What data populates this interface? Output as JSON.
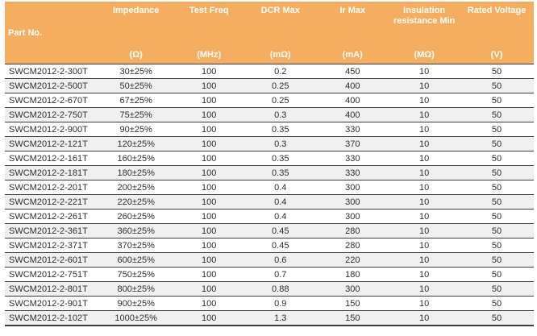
{
  "colors": {
    "header_bg": "#F5AE60",
    "header_text": "#FFFFFF",
    "row_alt_bg": "#F0F0F0",
    "row_line": "#3C3C3C",
    "body_text": "#2E2E2E"
  },
  "table": {
    "columns": [
      {
        "label": "Part No.",
        "unit": ""
      },
      {
        "label": "Impedance",
        "unit": "(Ω)"
      },
      {
        "label": "Test Freq",
        "unit": "(MHz)"
      },
      {
        "label": "DCR Max",
        "unit": "(mΩ)"
      },
      {
        "label": "Ir Max",
        "unit": "(mA)"
      },
      {
        "label": "Insulation resistance Min",
        "unit": "(MΩ)"
      },
      {
        "label": "Rated Voltage",
        "unit": "(V)"
      }
    ],
    "rows": [
      [
        "SWCM2012-2-300T",
        "30±25%",
        "100",
        "0.2",
        "450",
        "10",
        "50"
      ],
      [
        "SWCM2012-2-500T",
        "50±25%",
        "100",
        "0.25",
        "400",
        "10",
        "50"
      ],
      [
        "SWCM2012-2-670T",
        "67±25%",
        "100",
        "0.25",
        "400",
        "10",
        "50"
      ],
      [
        "SWCM2012-2-750T",
        "75±25%",
        "100",
        "0.3",
        "400",
        "10",
        "50"
      ],
      [
        "SWCM2012-2-900T",
        "90±25%",
        "100",
        "0.35",
        "330",
        "10",
        "50"
      ],
      [
        "SWCM2012-2-121T",
        "120±25%",
        "100",
        "0.3",
        "370",
        "10",
        "50"
      ],
      [
        "SWCM2012-2-161T",
        "160±25%",
        "100",
        "0.35",
        "330",
        "10",
        "50"
      ],
      [
        "SWCM2012-2-181T",
        "180±25%",
        "100",
        "0.35",
        "330",
        "10",
        "50"
      ],
      [
        "SWCM2012-2-201T",
        "200±25%",
        "100",
        "0.4",
        "300",
        "10",
        "50"
      ],
      [
        "SWCM2012-2-221T",
        "220±25%",
        "100",
        "0.4",
        "300",
        "10",
        "50"
      ],
      [
        "SWCM2012-2-261T",
        "260±25%",
        "100",
        "0.4",
        "300",
        "10",
        "50"
      ],
      [
        "SWCM2012-2-361T",
        "360±25%",
        "100",
        "0.45",
        "280",
        "10",
        "50"
      ],
      [
        "SWCM2012-2-371T",
        "370±25%",
        "100",
        "0.45",
        "280",
        "10",
        "50"
      ],
      [
        "SWCM2012-2-601T",
        "600±25%",
        "100",
        "0.6",
        "220",
        "10",
        "50"
      ],
      [
        "SWCM2012-2-751T",
        "750±25%",
        "100",
        "0.7",
        "180",
        "10",
        "50"
      ],
      [
        "SWCM2012-2-801T",
        "800±25%",
        "100",
        "0.88",
        "300",
        "10",
        "50"
      ],
      [
        "SWCM2012-2-901T",
        "900±25%",
        "100",
        "0.9",
        "150",
        "10",
        "50"
      ],
      [
        "SWCM2012-2-102T",
        "1000±25%",
        "100",
        "1.3",
        "150",
        "10",
        "50"
      ]
    ]
  }
}
